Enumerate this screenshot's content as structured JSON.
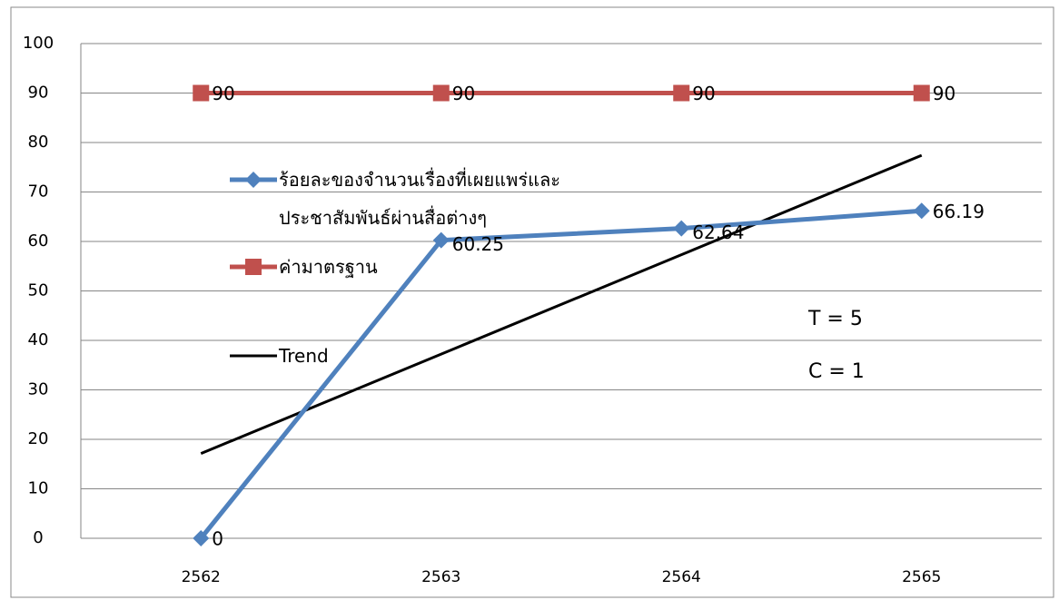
{
  "chart_data": {
    "type": "line",
    "categories": [
      "2562",
      "2563",
      "2564",
      "2565"
    ],
    "series": [
      {
        "name": "ร้อยละของจำนวนเรื่องที่เผยแพร่และประชาสัมพันธ์ผ่านสื่อต่างๆ",
        "color": "#4f81bd",
        "marker": "diamond",
        "values": [
          0,
          60.25,
          62.64,
          66.19
        ]
      },
      {
        "name": "ค่ามาตรฐาน",
        "color": "#c0504d",
        "marker": "square",
        "values": [
          90,
          90,
          90,
          90
        ]
      },
      {
        "name": "Trend",
        "color": "#000000",
        "marker": "none",
        "values": [
          17.13,
          37.22,
          57.32,
          77.41
        ]
      }
    ],
    "ylim": [
      0,
      100
    ],
    "yticks": [
      0,
      10,
      20,
      30,
      40,
      50,
      60,
      70,
      80,
      90,
      100
    ],
    "grid": true,
    "annotations": [
      "T = 5",
      "C = 1"
    ]
  }
}
